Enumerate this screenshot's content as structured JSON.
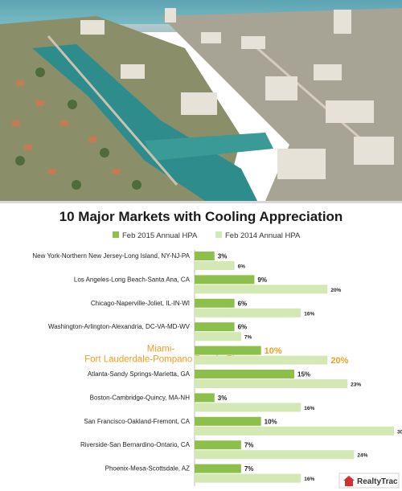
{
  "chart_data": {
    "type": "bar",
    "title": "10 Major Markets with Cooling Appreciation",
    "xlim": [
      0,
      30
    ],
    "legend_position": "top",
    "categories": [
      "New York-Northern New Jersey-Long Island, NY-NJ-PA",
      "Los Angeles-Long Beach-Santa Ana, CA",
      "Chicago-Naperville-Joliet, IL-IN-WI",
      "Washington-Arlington-Alexandria, DC-VA-MD-WV",
      "Miami-Fort Lauderdale-Pompano Beach, FL",
      "Atlanta-Sandy Springs-Marietta, GA",
      "Boston-Cambridge-Quincy, MA-NH",
      "San Francisco-Oakland-Fremont, CA",
      "Riverside-San Bernardino-Ontario, CA",
      "Phoenix-Mesa-Scottsdale, AZ"
    ],
    "series": [
      {
        "name": "Feb 2015 Annual HPA",
        "values": [
          3,
          9,
          6,
          6,
          10,
          15,
          3,
          10,
          7,
          7
        ],
        "color": "#8dbf4b"
      },
      {
        "name": "Feb 2014 Annual HPA",
        "values": [
          6,
          20,
          16,
          7,
          20,
          23,
          16,
          30,
          24,
          16
        ],
        "color": "#d3e8b3"
      }
    ],
    "highlight": {
      "index": 4,
      "color": "#f39c1f"
    },
    "value_suffix": "%"
  },
  "watermark": {
    "text": "RealtyTrac",
    "icon": "house-logo-icon",
    "color": "#d32f2f"
  }
}
